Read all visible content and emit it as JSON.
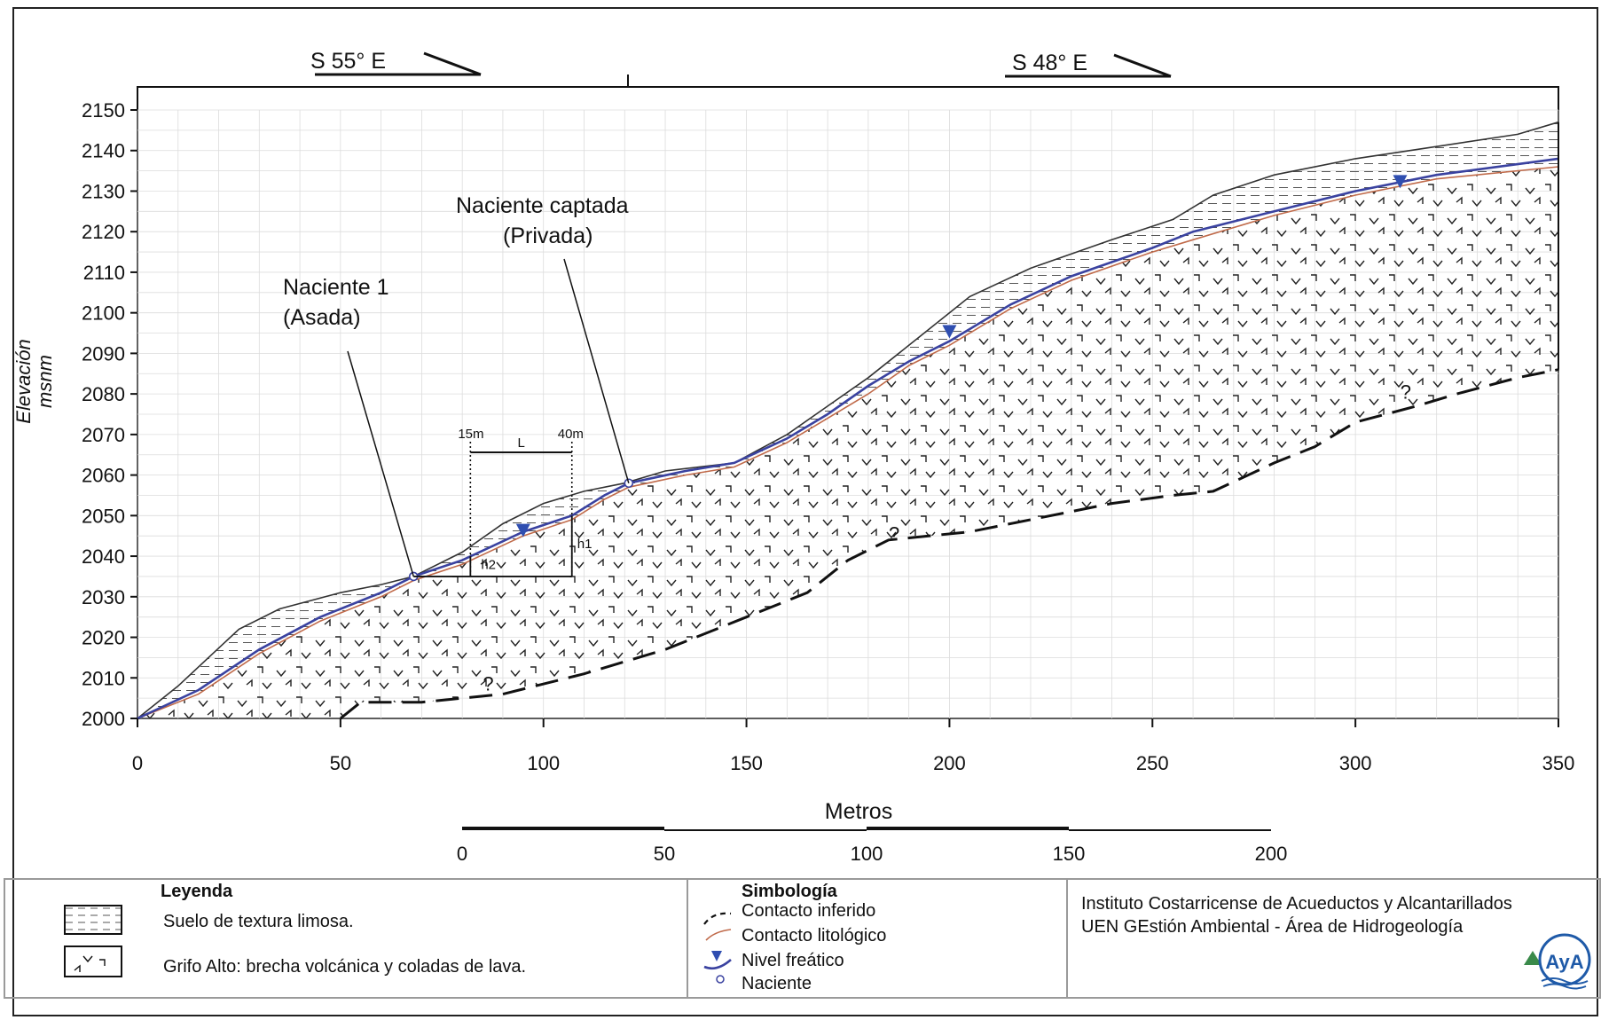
{
  "header": {
    "left_bearing": "S 55° E",
    "right_bearing": "S 48° E"
  },
  "axes": {
    "y_label_line1": "Elevación",
    "y_label_line2": "msnm",
    "x_label": "Metros",
    "y_ticks": [
      "2150",
      "2140",
      "2130",
      "2120",
      "2110",
      "2100",
      "2090",
      "2080",
      "2070",
      "2060",
      "2050",
      "2040",
      "2030",
      "2020",
      "2010",
      "2000"
    ],
    "x_ticks": [
      "0",
      "50",
      "100",
      "150",
      "200",
      "250",
      "300",
      "350"
    ],
    "scale_ticks": [
      "0",
      "50",
      "100",
      "150",
      "200"
    ]
  },
  "annotations": {
    "naciente1_line1": "Naciente 1",
    "naciente1_line2": "(Asada)",
    "captada_line1": "Naciente captada",
    "captada_line2": "(Privada)",
    "dim_15m": "15m",
    "dim_40m": "40m",
    "dim_L": "L",
    "dim_h1": "h1",
    "dim_h2": "h2",
    "question_mark": "?"
  },
  "chart_data": {
    "type": "cross-section",
    "x_unit": "m",
    "y_unit": "msnm",
    "xlim": [
      0,
      350
    ],
    "ylim": [
      2000,
      2150
    ],
    "grid": true,
    "ground_surface": [
      [
        0,
        2000
      ],
      [
        10,
        2008
      ],
      [
        25,
        2022
      ],
      [
        35,
        2027
      ],
      [
        50,
        2031
      ],
      [
        60,
        2033
      ],
      [
        68,
        2035
      ],
      [
        80,
        2041
      ],
      [
        90,
        2048
      ],
      [
        100,
        2053
      ],
      [
        110,
        2056
      ],
      [
        120,
        2058
      ],
      [
        130,
        2061
      ],
      [
        147,
        2063
      ],
      [
        160,
        2070
      ],
      [
        170,
        2077
      ],
      [
        180,
        2084
      ],
      [
        190,
        2092
      ],
      [
        200,
        2100
      ],
      [
        205,
        2104
      ],
      [
        220,
        2111
      ],
      [
        240,
        2118
      ],
      [
        255,
        2123
      ],
      [
        265,
        2129
      ],
      [
        280,
        2134
      ],
      [
        300,
        2138
      ],
      [
        320,
        2141
      ],
      [
        340,
        2144
      ],
      [
        350,
        2147
      ]
    ],
    "water_table": [
      [
        0,
        2000
      ],
      [
        15,
        2007
      ],
      [
        30,
        2017
      ],
      [
        45,
        2025
      ],
      [
        60,
        2031
      ],
      [
        68,
        2035
      ],
      [
        80,
        2039
      ],
      [
        95,
        2046
      ],
      [
        107,
        2050
      ],
      [
        115,
        2055
      ],
      [
        121,
        2058
      ],
      [
        135,
        2061
      ],
      [
        147,
        2063
      ],
      [
        160,
        2069
      ],
      [
        170,
        2075
      ],
      [
        180,
        2082
      ],
      [
        190,
        2088
      ],
      [
        200,
        2093
      ],
      [
        215,
        2102
      ],
      [
        230,
        2109
      ],
      [
        250,
        2116
      ],
      [
        260,
        2120
      ],
      [
        280,
        2125
      ],
      [
        300,
        2130
      ],
      [
        320,
        2134
      ],
      [
        350,
        2138
      ]
    ],
    "lithologic_contact": [
      [
        0,
        2000
      ],
      [
        15,
        2006
      ],
      [
        30,
        2016
      ],
      [
        45,
        2024
      ],
      [
        60,
        2030
      ],
      [
        68,
        2034
      ],
      [
        80,
        2038
      ],
      [
        95,
        2045
      ],
      [
        107,
        2049
      ],
      [
        115,
        2054
      ],
      [
        121,
        2057
      ],
      [
        135,
        2060
      ],
      [
        147,
        2062
      ],
      [
        160,
        2068
      ],
      [
        170,
        2074
      ],
      [
        180,
        2080
      ],
      [
        190,
        2087
      ],
      [
        200,
        2092
      ],
      [
        215,
        2101
      ],
      [
        230,
        2108
      ],
      [
        250,
        2115
      ],
      [
        260,
        2118
      ],
      [
        280,
        2124
      ],
      [
        300,
        2129
      ],
      [
        320,
        2133
      ],
      [
        350,
        2136
      ]
    ],
    "inferred_contact": [
      [
        50,
        2000
      ],
      [
        55,
        2004
      ],
      [
        70,
        2004
      ],
      [
        90,
        2006
      ],
      [
        110,
        2011
      ],
      [
        130,
        2017
      ],
      [
        150,
        2025
      ],
      [
        165,
        2031
      ],
      [
        175,
        2039
      ],
      [
        185,
        2044
      ],
      [
        205,
        2046
      ],
      [
        220,
        2049
      ],
      [
        240,
        2053
      ],
      [
        255,
        2055
      ],
      [
        265,
        2056
      ],
      [
        280,
        2063
      ],
      [
        290,
        2067
      ],
      [
        300,
        2073
      ],
      [
        315,
        2077
      ],
      [
        325,
        2080
      ],
      [
        340,
        2084
      ],
      [
        350,
        2086
      ]
    ],
    "springs": [
      [
        68,
        2035
      ],
      [
        121,
        2058
      ]
    ],
    "water_table_markers": [
      [
        95,
        2046
      ],
      [
        200,
        2095
      ],
      [
        311,
        2132
      ]
    ],
    "question_marks": [
      [
        82,
        2006
      ],
      [
        182,
        2043
      ],
      [
        308,
        2078
      ]
    ],
    "dimension_x": [
      82,
      107
    ],
    "dimension_base_y": 2035
  },
  "legend": {
    "title": "Leyenda",
    "items": [
      {
        "label": "Suelo de textura limosa."
      },
      {
        "label": "Grifo Alto: brecha volcánica y coladas de lava."
      }
    ]
  },
  "symbology": {
    "title": "Simbología",
    "items": [
      {
        "label": "Contacto inferido"
      },
      {
        "label": "Contacto litológico"
      },
      {
        "label": "Nivel freático"
      },
      {
        "label": "Naciente"
      }
    ]
  },
  "institution": {
    "line1": "Instituto Costarricense de Acueductos y Alcantarillados",
    "line2": "UEN GEstión Ambiental - Área de Hidrogeología",
    "logo_text": "AyA"
  },
  "colors": {
    "water_table": "#3a42a0",
    "lithologic_contact": "#c06a4a",
    "ground_line": "#333333",
    "grid": "#dcdcdc",
    "marker": "#2f4eb0"
  }
}
